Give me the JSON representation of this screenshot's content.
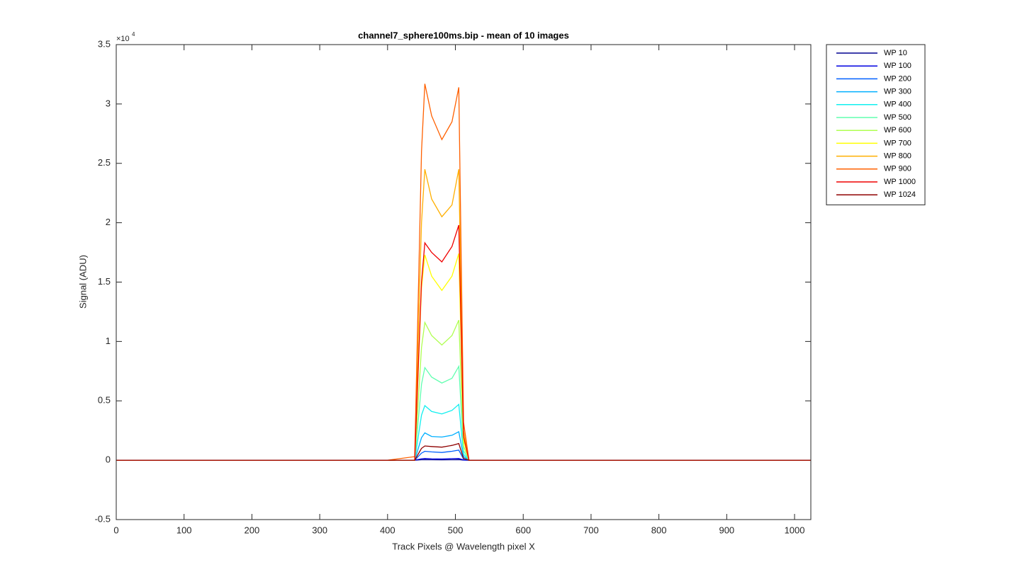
{
  "chart_data": {
    "type": "line",
    "title": "channel7_sphere100ms.bip - mean of 10 images",
    "xlabel": "Track Pixels @ Wavelength pixel X",
    "ylabel": "Signal (ADU)",
    "y_scale_base": "×10",
    "y_scale_exp": "4",
    "x": [
      0,
      100,
      200,
      300,
      400,
      440,
      450,
      455,
      465,
      480,
      495,
      505,
      512,
      520,
      600,
      700,
      800,
      900,
      1000,
      1024
    ],
    "xlim": [
      0,
      1024
    ],
    "xticks": [
      0,
      100,
      200,
      300,
      400,
      500,
      600,
      700,
      800,
      900,
      1000
    ],
    "ylim": [
      -5000,
      35000
    ],
    "yticks": [
      {
        "value": -5000,
        "label": "-0.5"
      },
      {
        "value": 0,
        "label": "0"
      },
      {
        "value": 5000,
        "label": "0.5"
      },
      {
        "value": 10000,
        "label": "1"
      },
      {
        "value": 15000,
        "label": "1.5"
      },
      {
        "value": 20000,
        "label": "2"
      },
      {
        "value": 25000,
        "label": "2.5"
      },
      {
        "value": 30000,
        "label": "3"
      },
      {
        "value": 35000,
        "label": "3.5"
      }
    ],
    "grid": false,
    "legend": "outside-right",
    "series": [
      {
        "name": "WP 10",
        "color": "#00008f",
        "values": [
          0,
          0,
          0,
          0,
          0,
          0,
          40,
          50,
          40,
          30,
          40,
          50,
          10,
          0,
          0,
          0,
          0,
          0,
          0,
          0
        ]
      },
      {
        "name": "WP 100",
        "color": "#0000e0",
        "values": [
          0,
          0,
          0,
          0,
          0,
          0,
          120,
          150,
          120,
          100,
          130,
          150,
          20,
          0,
          0,
          0,
          0,
          0,
          0,
          0
        ]
      },
      {
        "name": "WP 200",
        "color": "#0060ff",
        "values": [
          0,
          0,
          0,
          0,
          0,
          0,
          600,
          750,
          700,
          650,
          750,
          850,
          100,
          0,
          0,
          0,
          0,
          0,
          0,
          0
        ]
      },
      {
        "name": "WP 300",
        "color": "#00afff",
        "values": [
          0,
          0,
          0,
          0,
          0,
          0,
          1900,
          2300,
          2000,
          1950,
          2100,
          2400,
          300,
          0,
          0,
          0,
          0,
          0,
          0,
          0
        ]
      },
      {
        "name": "WP 400",
        "color": "#10efef",
        "values": [
          0,
          0,
          0,
          0,
          0,
          0,
          3800,
          4600,
          4100,
          3900,
          4200,
          4700,
          500,
          0,
          0,
          0,
          0,
          0,
          0,
          0
        ]
      },
      {
        "name": "WP 500",
        "color": "#60ffaf",
        "values": [
          0,
          0,
          0,
          0,
          0,
          0,
          6400,
          7800,
          7000,
          6500,
          6900,
          7900,
          800,
          0,
          0,
          0,
          0,
          0,
          0,
          0
        ]
      },
      {
        "name": "WP 600",
        "color": "#afff50",
        "values": [
          0,
          0,
          0,
          0,
          0,
          0,
          9500,
          11600,
          10500,
          9700,
          10500,
          11800,
          1200,
          0,
          0,
          0,
          0,
          0,
          0,
          0
        ]
      },
      {
        "name": "WP 700",
        "color": "#ffff00",
        "values": [
          0,
          0,
          0,
          0,
          0,
          0,
          14500,
          17300,
          15500,
          14300,
          15500,
          17400,
          1700,
          0,
          0,
          0,
          0,
          0,
          0,
          0
        ]
      },
      {
        "name": "WP 800",
        "color": "#ffaf00",
        "values": [
          0,
          0,
          0,
          0,
          0,
          0,
          20000,
          24500,
          22000,
          20500,
          21500,
          24500,
          2500,
          0,
          0,
          0,
          0,
          0,
          0,
          0
        ]
      },
      {
        "name": "WP 900",
        "color": "#ff6000",
        "values": [
          0,
          0,
          0,
          0,
          0,
          300,
          26000,
          31700,
          29000,
          27000,
          28500,
          31400,
          3200,
          0,
          0,
          0,
          0,
          0,
          0,
          0
        ]
      },
      {
        "name": "WP 1000",
        "color": "#ef0000",
        "values": [
          0,
          0,
          0,
          0,
          0,
          0,
          15000,
          18300,
          17500,
          16700,
          18000,
          19800,
          2000,
          0,
          0,
          0,
          0,
          0,
          0,
          0
        ]
      },
      {
        "name": "WP 1024",
        "color": "#8f0000",
        "values": [
          0,
          0,
          0,
          0,
          0,
          0,
          1000,
          1200,
          1150,
          1100,
          1250,
          1400,
          150,
          0,
          0,
          0,
          0,
          0,
          0,
          0
        ]
      }
    ]
  }
}
